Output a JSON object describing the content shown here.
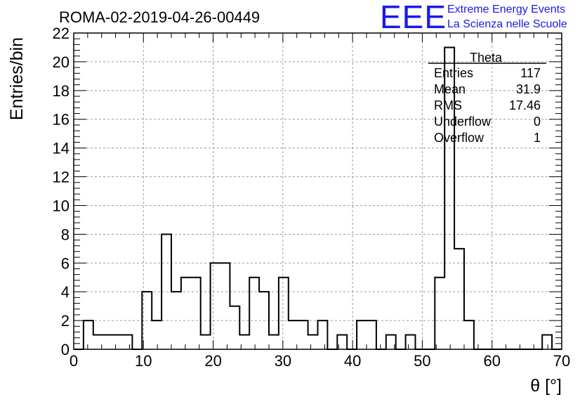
{
  "chart_data": {
    "type": "bar",
    "title": "ROMA-02-2019-04-26-00449",
    "xlabel": "θ [°]",
    "ylabel": "Entries/bin",
    "xlim": [
      0,
      70
    ],
    "ylim": [
      0,
      22
    ],
    "x_ticks": [
      0,
      10,
      20,
      30,
      40,
      50,
      60,
      70
    ],
    "y_ticks": [
      0,
      2,
      4,
      6,
      8,
      10,
      12,
      14,
      16,
      18,
      20,
      22
    ],
    "grid": true,
    "bin_edges": [
      0,
      1.4,
      2.8,
      4.2,
      5.6,
      7.0,
      8.4,
      9.8,
      11.2,
      12.6,
      14.0,
      15.4,
      16.8,
      18.2,
      19.6,
      21.0,
      22.4,
      23.8,
      25.2,
      26.6,
      28.0,
      29.4,
      30.8,
      32.2,
      33.6,
      35.0,
      36.4,
      37.8,
      39.2,
      40.6,
      42.0,
      43.4,
      44.8,
      46.2,
      47.6,
      49.0,
      50.4,
      51.8,
      53.2,
      54.6,
      56.0,
      57.4,
      58.8,
      60.2,
      61.6,
      63.0,
      64.4,
      65.8,
      67.2,
      68.6,
      70.0
    ],
    "counts": [
      0,
      2,
      1,
      1,
      1,
      1,
      0,
      4,
      2,
      8,
      4,
      5,
      5,
      1,
      6,
      6,
      3,
      1,
      5,
      4,
      1,
      5,
      2,
      2,
      1,
      2,
      0,
      1,
      0,
      2,
      2,
      0,
      1,
      0,
      1,
      0,
      0,
      5,
      21,
      7,
      2,
      0,
      0,
      0,
      0,
      0,
      0,
      0,
      1,
      0
    ],
    "stats": {
      "name": "Theta",
      "rows": [
        {
          "label": "Entries",
          "value": "117"
        },
        {
          "label": "Mean",
          "value": "31.9"
        },
        {
          "label": "RMS",
          "value": "17.46"
        },
        {
          "label": "Underflow",
          "value": "0"
        },
        {
          "label": "Overflow",
          "value": "1"
        }
      ]
    },
    "colors": {
      "histogram": "#000000",
      "grid": "#9a9a9a",
      "logo": "#1a1ae6"
    }
  },
  "logo": {
    "mark": "EEE",
    "line1": "Extreme Energy Events",
    "line2": "La Scienza nelle Scuole"
  }
}
